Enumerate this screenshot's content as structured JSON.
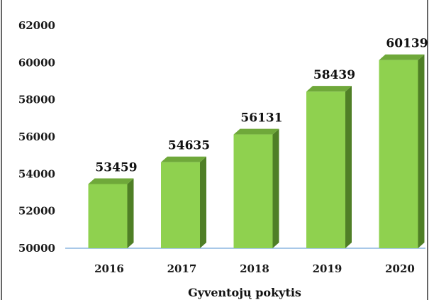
{
  "chart_data": {
    "type": "bar",
    "categories": [
      "2016",
      "2017",
      "2018",
      "2019",
      "2020"
    ],
    "values": [
      53459,
      54635,
      56131,
      58439,
      60139
    ],
    "xlabel": "Gyventojų pokytis",
    "ylabel": "",
    "ylim": [
      50000,
      62000
    ],
    "yticks": [
      "50000",
      "52000",
      "54000",
      "56000",
      "58000",
      "60000",
      "62000"
    ],
    "data_labels": [
      "53459",
      "54635",
      "56131",
      "58439",
      "60139"
    ],
    "grid": false,
    "style": "3d-column",
    "colors": {
      "bar_front": "#8fd14f",
      "bar_top": "#6fa83a",
      "bar_side": "#4f7f26",
      "baseline": "#a8c8e8",
      "frame": "#000000"
    }
  }
}
